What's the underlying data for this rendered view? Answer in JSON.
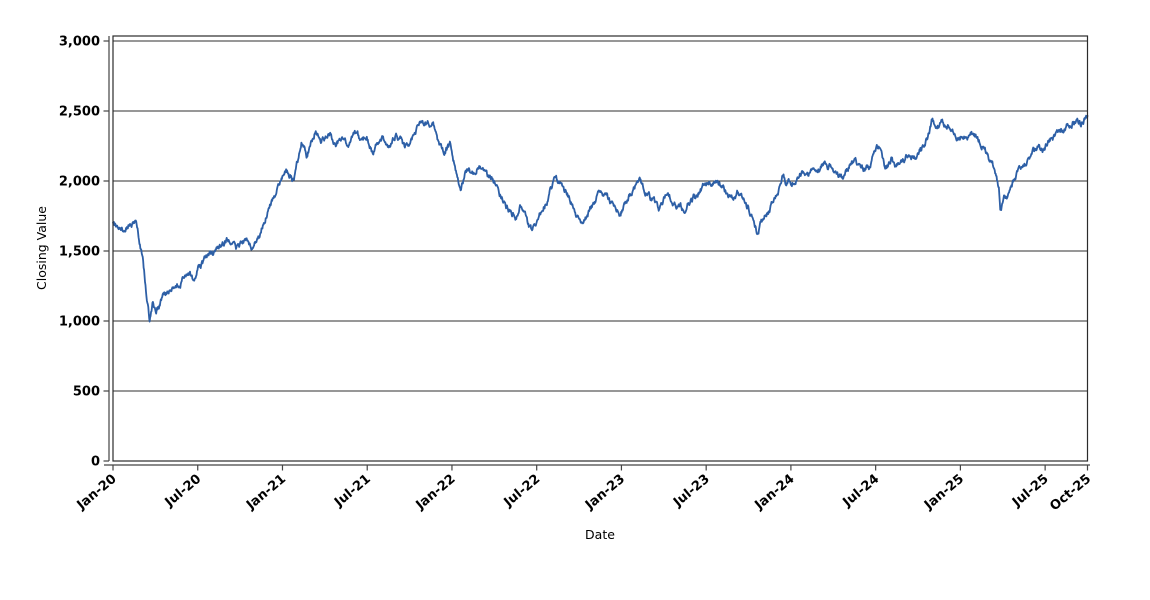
{
  "chart_data": {
    "type": "line",
    "title": "",
    "xlabel": "Date",
    "ylabel": "Closing Value",
    "legend": "none",
    "grid": true,
    "background_color": "#ffffff",
    "grid_color": "#2f2f2f",
    "axis_color": "#444444",
    "border_color": "#2b2b2b",
    "line_color": "#2d5fa6",
    "line_width": 1.8,
    "ylim": [
      0,
      3035
    ],
    "y_ticks": {
      "values": [
        0,
        500,
        1000,
        1500,
        2000,
        2500,
        3000
      ],
      "labels": [
        "0",
        "500",
        "1,000",
        "1,500",
        "2,000",
        "2,500",
        "3,000"
      ]
    },
    "x_ticks": {
      "labels": [
        "Jan-20",
        "Jul-20",
        "Jan-21",
        "Jul-21",
        "Jan-22",
        "Jul-22",
        "Jan-23",
        "Jul-23",
        "Jan-24",
        "Jul-24",
        "Jan-25",
        "Jul-25",
        "Oct-25"
      ],
      "month_offsets": [
        0,
        6,
        12,
        18,
        24,
        30,
        36,
        42,
        48,
        54,
        60,
        66,
        69
      ],
      "rotation_deg": -40
    },
    "start_date": "2020-01-01",
    "end_date": "2025-10-01",
    "sampling": "daily closing values (jagged noisy line)",
    "noise": {
      "seed": 20251024,
      "step": 17,
      "decay": 0.8
    },
    "series": [
      {
        "name": "Closing Value",
        "anchors": [
          [
            "2020-01-01",
            1690
          ],
          [
            "2020-01-20",
            1660
          ],
          [
            "2020-02-12",
            1705
          ],
          [
            "2020-02-20",
            1710
          ],
          [
            "2020-03-05",
            1430
          ],
          [
            "2020-03-20",
            995
          ],
          [
            "2020-03-27",
            1130
          ],
          [
            "2020-04-03",
            1070
          ],
          [
            "2020-04-20",
            1185
          ],
          [
            "2020-05-05",
            1230
          ],
          [
            "2020-05-20",
            1260
          ],
          [
            "2020-06-08",
            1360
          ],
          [
            "2020-06-20",
            1295
          ],
          [
            "2020-07-05",
            1390
          ],
          [
            "2020-07-25",
            1450
          ],
          [
            "2020-08-15",
            1520
          ],
          [
            "2020-09-02",
            1590
          ],
          [
            "2020-09-22",
            1505
          ],
          [
            "2020-10-12",
            1570
          ],
          [
            "2020-10-28",
            1515
          ],
          [
            "2020-11-15",
            1660
          ],
          [
            "2020-12-01",
            1800
          ],
          [
            "2020-12-20",
            1930
          ],
          [
            "2021-01-08",
            2060
          ],
          [
            "2021-01-25",
            2010
          ],
          [
            "2021-02-10",
            2280
          ],
          [
            "2021-02-22",
            2180
          ],
          [
            "2021-03-12",
            2360
          ],
          [
            "2021-03-25",
            2280
          ],
          [
            "2021-04-12",
            2340
          ],
          [
            "2021-04-25",
            2240
          ],
          [
            "2021-05-08",
            2330
          ],
          [
            "2021-05-20",
            2230
          ],
          [
            "2021-06-05",
            2360
          ],
          [
            "2021-06-18",
            2280
          ],
          [
            "2021-07-01",
            2310
          ],
          [
            "2021-07-15",
            2200
          ],
          [
            "2021-08-03",
            2310
          ],
          [
            "2021-08-17",
            2235
          ],
          [
            "2021-09-02",
            2330
          ],
          [
            "2021-09-20",
            2240
          ],
          [
            "2021-10-05",
            2290
          ],
          [
            "2021-10-26",
            2450
          ],
          [
            "2021-11-08",
            2395
          ],
          [
            "2021-11-20",
            2420
          ],
          [
            "2021-12-03",
            2270
          ],
          [
            "2021-12-15",
            2210
          ],
          [
            "2021-12-28",
            2255
          ],
          [
            "2022-01-10",
            2050
          ],
          [
            "2022-01-20",
            1965
          ],
          [
            "2022-02-03",
            2090
          ],
          [
            "2022-02-15",
            2060
          ],
          [
            "2022-03-01",
            2130
          ],
          [
            "2022-03-15",
            2050
          ],
          [
            "2022-04-01",
            2000
          ],
          [
            "2022-04-20",
            1870
          ],
          [
            "2022-05-05",
            1780
          ],
          [
            "2022-05-18",
            1745
          ],
          [
            "2022-05-28",
            1840
          ],
          [
            "2022-06-10",
            1705
          ],
          [
            "2022-06-20",
            1650
          ],
          [
            "2022-07-08",
            1760
          ],
          [
            "2022-07-25",
            1880
          ],
          [
            "2022-08-12",
            2030
          ],
          [
            "2022-08-30",
            1930
          ],
          [
            "2022-09-15",
            1850
          ],
          [
            "2022-09-28",
            1745
          ],
          [
            "2022-10-10",
            1685
          ],
          [
            "2022-10-25",
            1800
          ],
          [
            "2022-11-15",
            1920
          ],
          [
            "2022-11-28",
            1900
          ],
          [
            "2022-12-12",
            1840
          ],
          [
            "2022-12-28",
            1760
          ],
          [
            "2023-01-12",
            1870
          ],
          [
            "2023-01-28",
            1950
          ],
          [
            "2023-02-08",
            2020
          ],
          [
            "2023-02-22",
            1930
          ],
          [
            "2023-03-10",
            1850
          ],
          [
            "2023-03-22",
            1805
          ],
          [
            "2023-04-05",
            1880
          ],
          [
            "2023-04-20",
            1860
          ],
          [
            "2023-05-03",
            1820
          ],
          [
            "2023-05-18",
            1790
          ],
          [
            "2023-06-05",
            1880
          ],
          [
            "2023-06-20",
            1940
          ],
          [
            "2023-07-10",
            2010
          ],
          [
            "2023-07-25",
            1990
          ],
          [
            "2023-08-10",
            1930
          ],
          [
            "2023-08-25",
            1885
          ],
          [
            "2023-09-08",
            1920
          ],
          [
            "2023-09-22",
            1845
          ],
          [
            "2023-10-06",
            1780
          ],
          [
            "2023-10-20",
            1635
          ],
          [
            "2023-11-05",
            1740
          ],
          [
            "2023-11-22",
            1830
          ],
          [
            "2023-12-06",
            1940
          ],
          [
            "2023-12-14",
            2070
          ],
          [
            "2023-12-22",
            1990
          ],
          [
            "2024-01-10",
            2010
          ],
          [
            "2024-01-25",
            2050
          ],
          [
            "2024-02-12",
            2070
          ],
          [
            "2024-02-25",
            2045
          ],
          [
            "2024-03-12",
            2130
          ],
          [
            "2024-03-25",
            2110
          ],
          [
            "2024-04-10",
            2050
          ],
          [
            "2024-04-22",
            2025
          ],
          [
            "2024-05-08",
            2120
          ],
          [
            "2024-05-20",
            2150
          ],
          [
            "2024-06-05",
            2090
          ],
          [
            "2024-06-20",
            2110
          ],
          [
            "2024-07-03",
            2260
          ],
          [
            "2024-07-12",
            2220
          ],
          [
            "2024-07-22",
            2065
          ],
          [
            "2024-08-05",
            2160
          ],
          [
            "2024-08-15",
            2085
          ],
          [
            "2024-08-28",
            2145
          ],
          [
            "2024-09-10",
            2200
          ],
          [
            "2024-09-25",
            2165
          ],
          [
            "2024-10-10",
            2250
          ],
          [
            "2024-10-22",
            2300
          ],
          [
            "2024-11-01",
            2445
          ],
          [
            "2024-11-10",
            2360
          ],
          [
            "2024-11-20",
            2435
          ],
          [
            "2024-12-05",
            2395
          ],
          [
            "2024-12-20",
            2290
          ],
          [
            "2025-01-08",
            2310
          ],
          [
            "2025-01-22",
            2340
          ],
          [
            "2025-02-07",
            2310
          ],
          [
            "2025-02-20",
            2250
          ],
          [
            "2025-03-08",
            2130
          ],
          [
            "2025-03-18",
            2060
          ],
          [
            "2025-03-24",
            1960
          ],
          [
            "2025-03-27",
            1790
          ],
          [
            "2025-04-05",
            1900
          ],
          [
            "2025-04-10",
            1865
          ],
          [
            "2025-04-18",
            1955
          ],
          [
            "2025-05-05",
            2060
          ],
          [
            "2025-05-18",
            2130
          ],
          [
            "2025-06-03",
            2190
          ],
          [
            "2025-06-17",
            2250
          ],
          [
            "2025-07-01",
            2230
          ],
          [
            "2025-07-15",
            2300
          ],
          [
            "2025-08-01",
            2340
          ],
          [
            "2025-08-18",
            2390
          ],
          [
            "2025-09-03",
            2430
          ],
          [
            "2025-09-17",
            2405
          ],
          [
            "2025-10-01",
            2470
          ]
        ]
      }
    ]
  }
}
